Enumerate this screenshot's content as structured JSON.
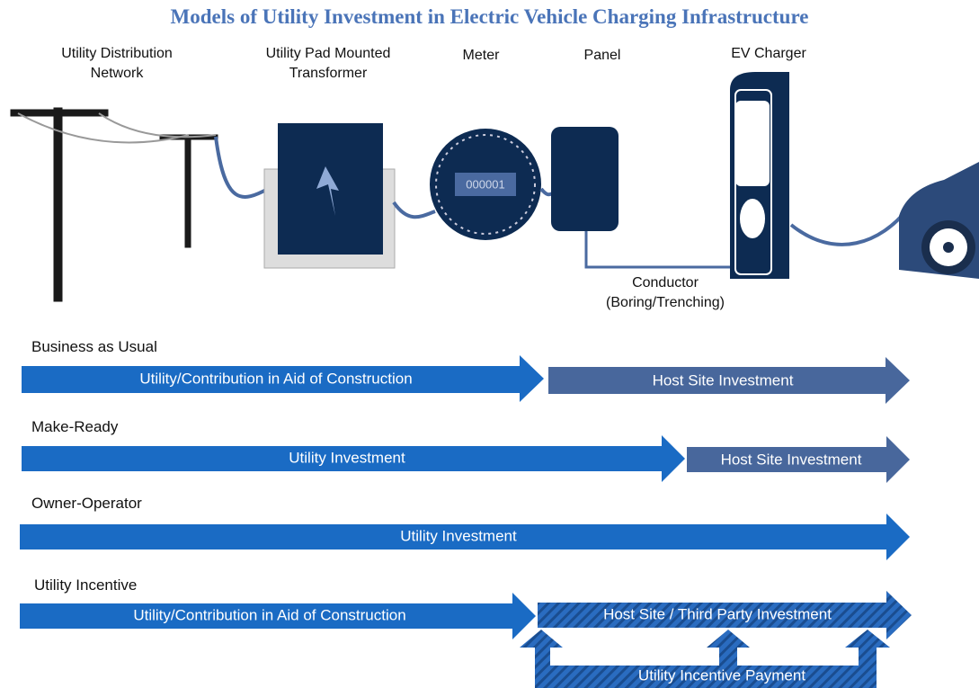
{
  "header": {
    "title": "Models of Utility Investment in Electric Vehicle Charging Infrastructure"
  },
  "components": {
    "distribution": "Utility Distribution Network",
    "transformer": "Utility Pad Mounted Transformer",
    "meter": "Meter",
    "meter_display": "000001",
    "panel": "Panel",
    "charger": "EV Charger",
    "conductor": "Conductor (Boring/Trenching)"
  },
  "models": [
    {
      "name": "Business as Usual",
      "utility": "Utility/Contribution in Aid of Construction",
      "host": "Host Site Investment"
    },
    {
      "name": "Make-Ready",
      "utility": "Utility Investment",
      "host": "Host Site Investment"
    },
    {
      "name": "Owner-Operator",
      "utility": "Utility Investment"
    },
    {
      "name": "Utility Incentive",
      "utility": "Utility/Contribution in Aid of Construction",
      "host": "Host Site / Third Party Investment",
      "incentive": "Utility Incentive Payment"
    }
  ]
}
